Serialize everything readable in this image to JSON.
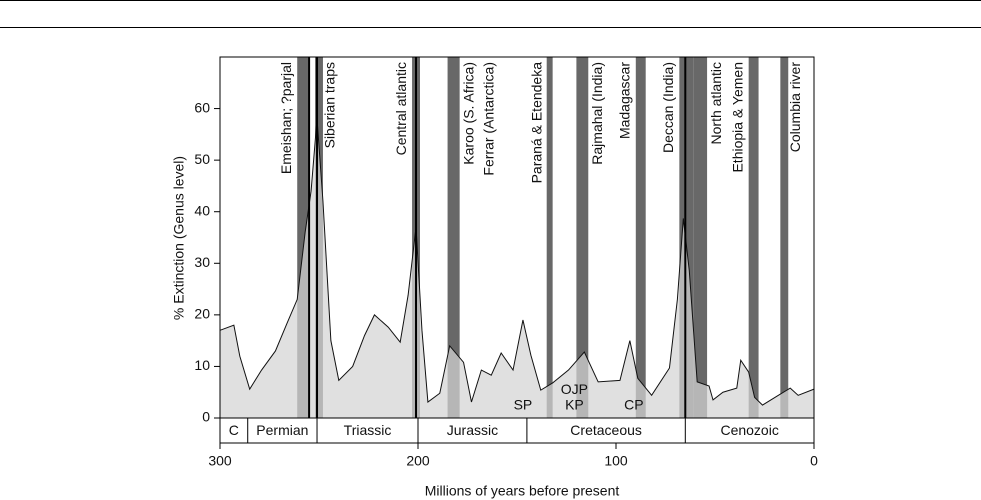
{
  "chart_data": {
    "type": "area",
    "xlabel": "Millions of years before present",
    "ylabel": "% Extinction (Genus level)",
    "xlim": [
      300,
      0
    ],
    "ylim": [
      0,
      70
    ],
    "xticks": [
      300,
      200,
      100,
      0
    ],
    "yticks": [
      0,
      10,
      20,
      30,
      40,
      50,
      60
    ],
    "series": [
      {
        "color": "#d4d4d4",
        "x": [
          300,
          293,
          290,
          285,
          279,
          272,
          266,
          261,
          257,
          254,
          251,
          248,
          244,
          240,
          233,
          227,
          222,
          215,
          209,
          205,
          201,
          198,
          195,
          189,
          184,
          177,
          173,
          168,
          163,
          158,
          152,
          147,
          143,
          138,
          132,
          124,
          116,
          109,
          98,
          93,
          89,
          82,
          73,
          69,
          66,
          63,
          59,
          53,
          51,
          46,
          39,
          37,
          33,
          30,
          26,
          18,
          12,
          8,
          0
        ],
        "values": [
          17,
          18,
          12,
          5.6,
          9.3,
          13,
          18.5,
          23,
          36,
          44,
          58,
          42,
          15,
          7.3,
          10,
          16,
          20,
          17.6,
          14.7,
          23.8,
          37,
          17,
          3.1,
          4.8,
          14,
          10.8,
          3.1,
          9.3,
          8.3,
          12.6,
          9.3,
          19,
          12.2,
          5.4,
          6.8,
          9.3,
          12.8,
          7,
          7.3,
          15,
          7.7,
          4.4,
          9.7,
          23,
          38.7,
          28.6,
          7,
          6.2,
          3.5,
          5,
          5.8,
          11.2,
          8.9,
          4,
          2.5,
          4.4,
          5.8,
          4.4,
          5.6
        ]
      }
    ],
    "events": [
      {
        "label": "Emeishan; ?parjal",
        "start": 261,
        "end": 255
      },
      {
        "label": "Siberian traps",
        "start": 252,
        "end": 248
      },
      {
        "label": "Central atlantic",
        "start": 203,
        "end": 199
      },
      {
        "label": "Karoo (S. Africa)",
        "start": 185,
        "end": 179
      },
      {
        "label": "Ferrar (Antarctica)",
        "start": 185,
        "end": 179
      },
      {
        "label": "Paraná & Etendeka",
        "start": 135,
        "end": 132
      },
      {
        "label": "Rajmahal (India)",
        "start": 120,
        "end": 114
      },
      {
        "label": "Madagascar",
        "start": 90,
        "end": 85
      },
      {
        "label": "Deccan (India)",
        "start": 68,
        "end": 61
      },
      {
        "label": "North atlantic",
        "start": 61,
        "end": 54
      },
      {
        "label": "Ethiopia & Yemen",
        "start": 33,
        "end": 28
      },
      {
        "label": "Columbia river",
        "start": 17,
        "end": 13
      }
    ],
    "extinction_lines": [
      255,
      251,
      201,
      65
    ],
    "annotations": [
      {
        "text": "SP",
        "x": 147,
        "y": 2
      },
      {
        "text": "OJP",
        "x": 121,
        "y": 5
      },
      {
        "text": "KP",
        "x": 121,
        "y": 2
      },
      {
        "text": "CP",
        "x": 91,
        "y": 2
      }
    ],
    "periods": [
      {
        "name": "C",
        "start": 300,
        "end": 286
      },
      {
        "name": "Permian",
        "start": 286,
        "end": 251
      },
      {
        "name": "Triassic",
        "start": 251,
        "end": 200
      },
      {
        "name": "Jurassic",
        "start": 200,
        "end": 145
      },
      {
        "name": "Cretaceous",
        "start": 145,
        "end": 65
      },
      {
        "name": "Cenozoic",
        "start": 65,
        "end": 0
      }
    ]
  }
}
